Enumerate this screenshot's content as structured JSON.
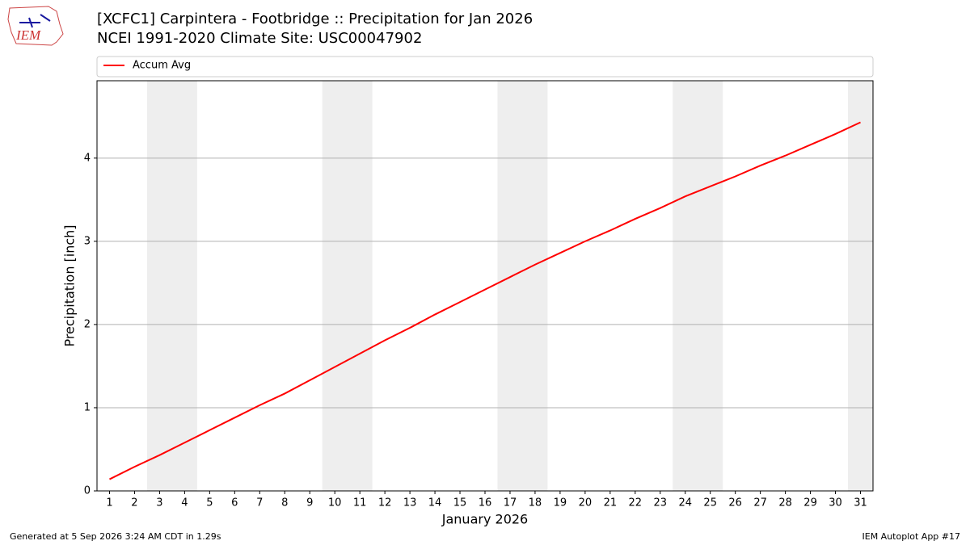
{
  "chart_data": {
    "type": "line",
    "title": "[XCFC1] Carpintera - Footbridge :: Precipitation for Jan 2026",
    "subtitle": "NCEI 1991-2020 Climate Site: USC00047902",
    "xlabel": "January 2026",
    "ylabel": "Precipitation [inch]",
    "x": [
      1,
      2,
      3,
      4,
      5,
      6,
      7,
      8,
      9,
      10,
      11,
      12,
      13,
      14,
      15,
      16,
      17,
      18,
      19,
      20,
      21,
      22,
      23,
      24,
      25,
      26,
      27,
      28,
      29,
      30,
      31
    ],
    "series": [
      {
        "name": "Accum Avg",
        "color": "#ff0000",
        "values": [
          0.14,
          0.29,
          0.43,
          0.58,
          0.73,
          0.88,
          1.03,
          1.17,
          1.33,
          1.49,
          1.65,
          1.81,
          1.96,
          2.12,
          2.27,
          2.42,
          2.57,
          2.72,
          2.86,
          3.0,
          3.13,
          3.27,
          3.4,
          3.54,
          3.66,
          3.78,
          3.91,
          4.03,
          4.16,
          4.29,
          4.43
        ]
      }
    ],
    "shaded_spans": [
      [
        2.5,
        4.5
      ],
      [
        9.5,
        11.5
      ],
      [
        16.5,
        18.5
      ],
      [
        23.5,
        25.5
      ],
      [
        30.5,
        31.5
      ]
    ],
    "shade_color": "#eeeeee",
    "xlim": [
      0.5,
      31.5
    ],
    "xticks": [
      1,
      2,
      3,
      4,
      5,
      6,
      7,
      8,
      9,
      10,
      11,
      12,
      13,
      14,
      15,
      16,
      17,
      18,
      19,
      20,
      21,
      22,
      23,
      24,
      25,
      26,
      27,
      28,
      29,
      30,
      31
    ],
    "ylim": [
      0,
      4.93
    ],
    "yticks": [
      0,
      1,
      2,
      3,
      4
    ],
    "grid": true,
    "legend": "top"
  },
  "logo": "IEM",
  "footer": {
    "left": "Generated at 5 Sep 2026 3:24 AM CDT in 1.29s",
    "right": "IEM Autoplot App #17"
  }
}
